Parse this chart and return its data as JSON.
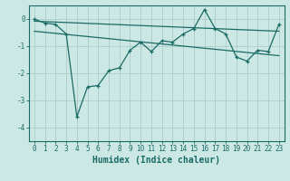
{
  "xlabel": "Humidex (Indice chaleur)",
  "bg_color": "#cce8e4",
  "grid_color": "#aaccca",
  "line_color": "#1a6b65",
  "xlim": [
    -0.5,
    23.5
  ],
  "ylim": [
    -4.5,
    0.5
  ],
  "yticks": [
    0,
    -1,
    -2,
    -3,
    -4
  ],
  "xticks": [
    0,
    1,
    2,
    3,
    4,
    5,
    6,
    7,
    8,
    9,
    10,
    11,
    12,
    13,
    14,
    15,
    16,
    17,
    18,
    19,
    20,
    21,
    22,
    23
  ],
  "main_line_x": [
    0,
    1,
    2,
    3,
    4,
    5,
    6,
    7,
    8,
    9,
    10,
    11,
    12,
    13,
    14,
    15,
    16,
    17,
    18,
    19,
    20,
    21,
    22,
    23
  ],
  "main_line_y": [
    0.0,
    -0.15,
    -0.2,
    -0.55,
    -3.6,
    -2.5,
    -2.45,
    -1.9,
    -1.8,
    -1.15,
    -0.85,
    -1.2,
    -0.8,
    -0.85,
    -0.55,
    -0.35,
    0.35,
    -0.35,
    -0.55,
    -1.4,
    -1.55,
    -1.15,
    -1.2,
    -0.2
  ],
  "upper_line_x": [
    0,
    23
  ],
  "upper_line_y": [
    -0.08,
    -0.45
  ],
  "lower_line_x": [
    0,
    23
  ],
  "lower_line_y": [
    -0.45,
    -1.35
  ],
  "font_size_label": 7,
  "font_size_tick": 5.5
}
